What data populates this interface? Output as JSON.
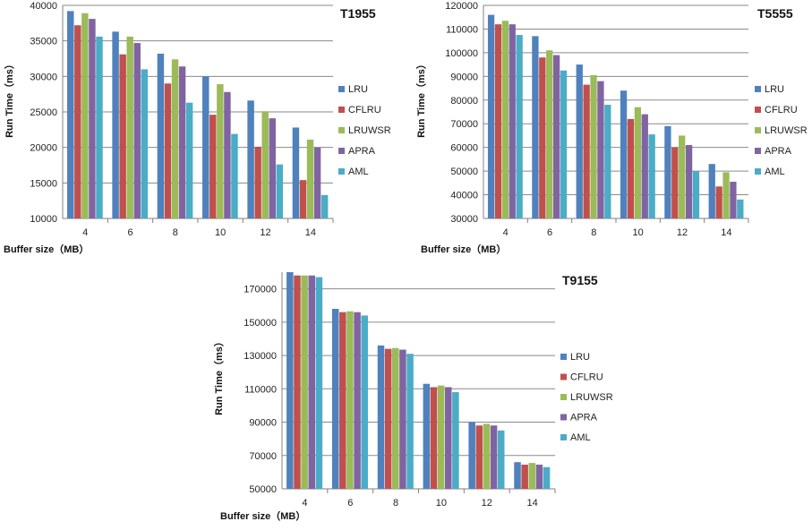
{
  "series_colors": {
    "LRU": "#4f81bd",
    "CFLRU": "#c0504d",
    "LRUWSR": "#9bbb59",
    "APRA": "#8064a2",
    "AML": "#4bacc6"
  },
  "chart_data": [
    {
      "type": "bar",
      "title": "T1955",
      "xlabel": "Buffer size（MB）",
      "ylabel": "Run Time（ms）",
      "categories": [
        "4",
        "6",
        "8",
        "10",
        "12",
        "14"
      ],
      "ylim": [
        10000,
        40000
      ],
      "yticks": [
        10000,
        15000,
        20000,
        25000,
        30000,
        35000,
        40000
      ],
      "grid": true,
      "legend": "right",
      "series": [
        {
          "name": "LRU",
          "values": [
            39200,
            36300,
            33200,
            30000,
            26600,
            22800
          ]
        },
        {
          "name": "CFLRU",
          "values": [
            37200,
            33100,
            29000,
            24600,
            20100,
            15400
          ]
        },
        {
          "name": "LRUWSR",
          "values": [
            38900,
            35600,
            32400,
            28900,
            25100,
            21100
          ]
        },
        {
          "name": "APRA",
          "values": [
            38100,
            34700,
            31400,
            27800,
            24100,
            20000
          ]
        },
        {
          "name": "AML",
          "values": [
            35600,
            31000,
            26300,
            21900,
            17600,
            13300
          ]
        }
      ]
    },
    {
      "type": "bar",
      "title": "T5555",
      "xlabel": "Buffer size（MB）",
      "ylabel": "Run Time（ms）",
      "categories": [
        "4",
        "6",
        "8",
        "10",
        "12",
        "14"
      ],
      "ylim": [
        30000,
        120000
      ],
      "yticks": [
        30000,
        40000,
        50000,
        60000,
        70000,
        80000,
        90000,
        100000,
        110000,
        120000
      ],
      "grid": true,
      "legend": "right",
      "series": [
        {
          "name": "LRU",
          "values": [
            116000,
            107000,
            95000,
            84000,
            69000,
            53000
          ]
        },
        {
          "name": "CFLRU",
          "values": [
            112000,
            98000,
            86500,
            72000,
            60000,
            43500
          ]
        },
        {
          "name": "LRUWSR",
          "values": [
            113500,
            101000,
            90500,
            77000,
            65000,
            49500
          ]
        },
        {
          "name": "APRA",
          "values": [
            112000,
            99000,
            88000,
            74000,
            61000,
            45500
          ]
        },
        {
          "name": "AML",
          "values": [
            107500,
            92500,
            78000,
            65500,
            50000,
            38000
          ]
        }
      ]
    },
    {
      "type": "bar",
      "title": "T9155",
      "xlabel": "Buffer size（MB）",
      "ylabel": "Run Time（ms）",
      "categories": [
        "4",
        "6",
        "8",
        "10",
        "12",
        "14"
      ],
      "ylim": [
        50000,
        180000
      ],
      "yticks": [
        50000,
        70000,
        90000,
        110000,
        130000,
        150000,
        170000
      ],
      "grid": true,
      "legend": "right",
      "series": [
        {
          "name": "LRU",
          "values": [
            180000,
            158000,
            136000,
            113000,
            90000,
            66000
          ]
        },
        {
          "name": "CFLRU",
          "values": [
            178000,
            156000,
            134000,
            111000,
            88000,
            64500
          ]
        },
        {
          "name": "LRUWSR",
          "values": [
            178000,
            156500,
            134500,
            112000,
            89000,
            65500
          ]
        },
        {
          "name": "APRA",
          "values": [
            178000,
            156000,
            133500,
            111000,
            88000,
            64500
          ]
        },
        {
          "name": "AML",
          "values": [
            177000,
            154000,
            131000,
            108000,
            85000,
            63000
          ]
        }
      ]
    }
  ]
}
